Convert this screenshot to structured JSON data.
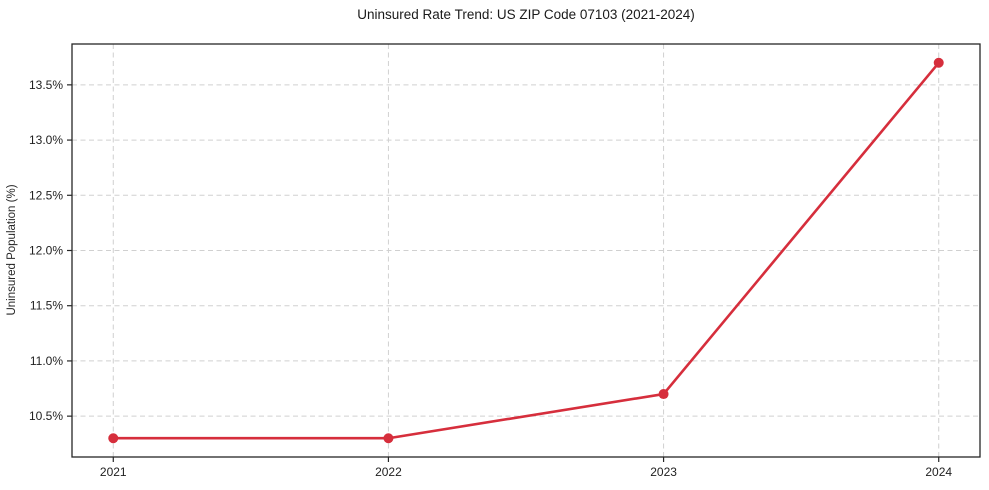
{
  "chart_data": {
    "type": "line",
    "title": "Uninsured Rate Trend: US ZIP Code 07103 (2021-2024)",
    "xlabel": "",
    "ylabel": "Uninsured Population (%)",
    "x": [
      2021,
      2022,
      2023,
      2024
    ],
    "x_tick_labels": [
      "2021",
      "2022",
      "2023",
      "2024"
    ],
    "series": [
      {
        "name": "Uninsured Rate",
        "values": [
          10.3,
          10.3,
          10.7,
          13.7
        ]
      }
    ],
    "y_ticks": [
      10.5,
      11.0,
      11.5,
      12.0,
      12.5,
      13.0,
      13.5
    ],
    "y_tick_labels": [
      "10.5%",
      "11.0%",
      "11.5%",
      "12.0%",
      "12.5%",
      "13.0%",
      "13.5%"
    ],
    "xlim": [
      2020.85,
      2024.15
    ],
    "ylim": [
      10.13,
      13.87
    ],
    "grid": true,
    "legend_position": "none",
    "colors": {
      "line": "#d62e3c",
      "marker": "#d62e3c",
      "grid": "#d0d0d0",
      "axis": "#262626",
      "text": "#1f1f1f",
      "background": "#ffffff"
    },
    "marker": "circle",
    "marker_radius": 5
  }
}
